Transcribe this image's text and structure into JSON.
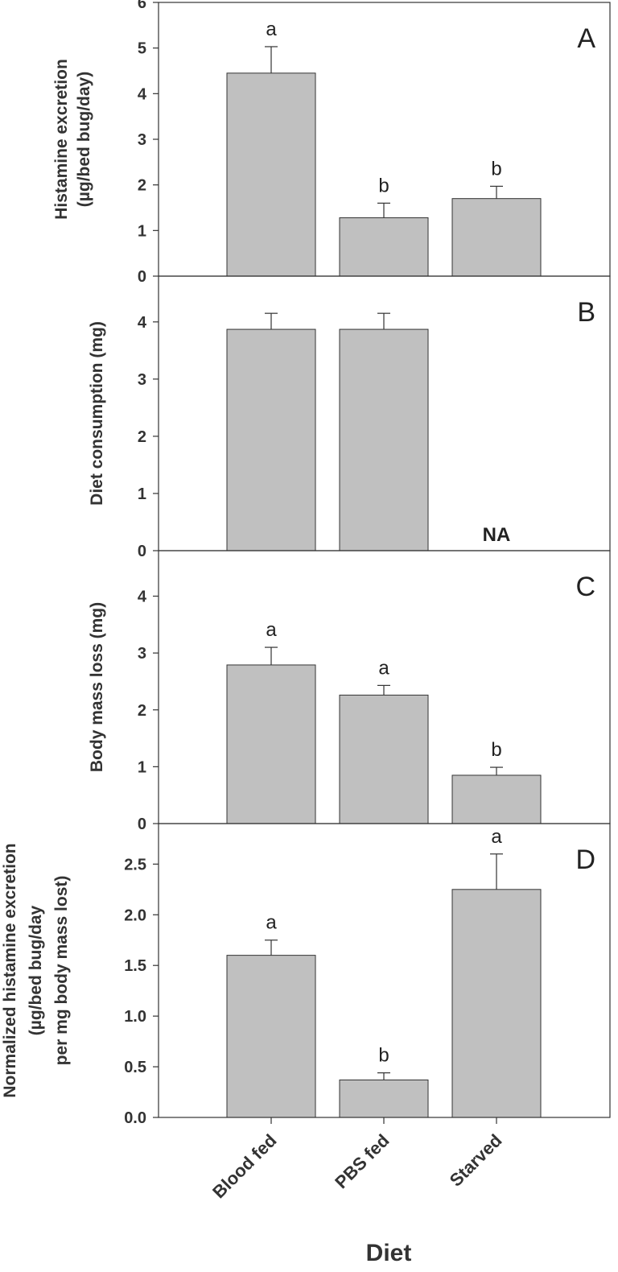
{
  "chart_data": [
    {
      "type": "bar",
      "panel": "A",
      "categories": [
        "Blood fed",
        "PBS fed",
        "Starved"
      ],
      "values": [
        4.45,
        1.28,
        1.7
      ],
      "errors": [
        0.58,
        0.32,
        0.27
      ],
      "significance": [
        "a",
        "b",
        "b"
      ],
      "ylabel_lines": [
        "Histamine excretion",
        "(µg/bed bug/day)"
      ],
      "ylim": [
        0,
        6
      ],
      "yticks": [
        0,
        1,
        2,
        3,
        4,
        5,
        6
      ],
      "ytick_labels": [
        "0",
        "1",
        "2",
        "3",
        "4",
        "5",
        "6"
      ]
    },
    {
      "type": "bar",
      "panel": "B",
      "categories": [
        "Blood fed",
        "PBS fed",
        "Starved"
      ],
      "values": [
        3.87,
        3.87,
        null
      ],
      "errors": [
        0.28,
        0.28,
        null
      ],
      "significance": [
        "",
        "",
        ""
      ],
      "missing_label": "NA",
      "ylabel_lines": [
        "Diet consumption (mg)"
      ],
      "ylim": [
        0,
        4.8
      ],
      "yticks": [
        0,
        1,
        2,
        3,
        4
      ],
      "ytick_labels": [
        "0",
        "1",
        "2",
        "3",
        "4"
      ]
    },
    {
      "type": "bar",
      "panel": "C",
      "categories": [
        "Blood fed",
        "PBS fed",
        "Starved"
      ],
      "values": [
        2.79,
        2.26,
        0.85
      ],
      "errors": [
        0.31,
        0.17,
        0.14
      ],
      "significance": [
        "a",
        "a",
        "b"
      ],
      "ylabel_lines": [
        "Body mass loss (mg)"
      ],
      "ylim": [
        0,
        4.8
      ],
      "yticks": [
        0,
        1,
        2,
        3,
        4
      ],
      "ytick_labels": [
        "0",
        "1",
        "2",
        "3",
        "4"
      ]
    },
    {
      "type": "bar",
      "panel": "D",
      "categories": [
        "Blood fed",
        "PBS fed",
        "Starved"
      ],
      "values": [
        1.6,
        0.37,
        2.25
      ],
      "errors": [
        0.15,
        0.07,
        0.35
      ],
      "significance": [
        "a",
        "b",
        "a"
      ],
      "ylabel_lines": [
        "Normalized histamine excretion",
        "(µg/bed bug/day",
        "per mg body mass lost)"
      ],
      "ylim": [
        0,
        2.9
      ],
      "yticks": [
        0,
        0.5,
        1.0,
        1.5,
        2.0,
        2.5
      ],
      "ytick_labels": [
        "0.0",
        "0.5",
        "1.0",
        "1.5",
        "2.0",
        "2.5"
      ]
    }
  ],
  "xlabel": "Diet",
  "categories": [
    "Blood fed",
    "PBS fed",
    "Starved"
  ],
  "colors": {
    "bar": "#c0c0c0",
    "stroke": "#333333"
  }
}
